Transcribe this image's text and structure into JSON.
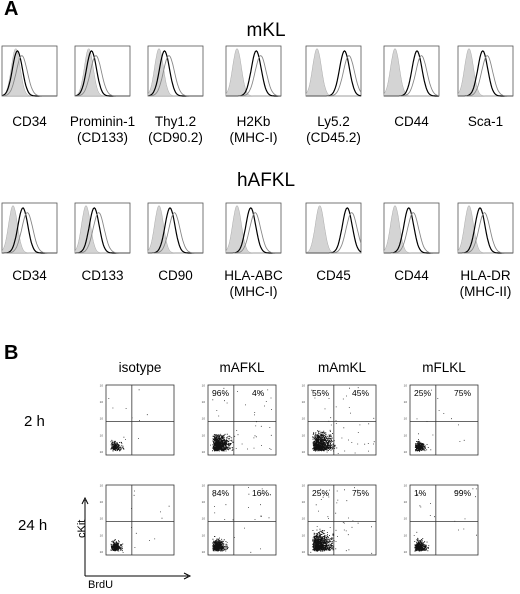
{
  "panel_a": {
    "letter": "A",
    "mkl": {
      "title": "mKL",
      "markers": [
        {
          "line1": "CD34",
          "line2": ""
        },
        {
          "line1": "Prominin-1",
          "line2": "(CD133)"
        },
        {
          "line1": "Thy1.2",
          "line2": "(CD90.2)"
        },
        {
          "line1": "H2Kb",
          "line2": "(MHC-I)"
        },
        {
          "line1": "Ly5.2",
          "line2": "(CD45.2)"
        },
        {
          "line1": "CD44",
          "line2": ""
        },
        {
          "line1": "Sca-1",
          "line2": ""
        }
      ]
    },
    "hafkl": {
      "title": "hAFKL",
      "markers": [
        {
          "line1": "CD34",
          "line2": ""
        },
        {
          "line1": "CD133",
          "line2": ""
        },
        {
          "line1": "CD90",
          "line2": ""
        },
        {
          "line1": "HLA-ABC",
          "line2": "(MHC-I)"
        },
        {
          "line1": "CD45",
          "line2": ""
        },
        {
          "line1": "CD44",
          "line2": ""
        },
        {
          "line1": "HLA-DR",
          "line2": "(MHC-II)"
        }
      ]
    }
  },
  "panel_b": {
    "letter": "B",
    "columns": [
      "isotype",
      "mAFKL",
      "mAmKL",
      "mFLKL"
    ],
    "rows": [
      "2 h",
      "24 h"
    ],
    "y_axis_label": "cKit",
    "x_axis_label": "BrdU",
    "quadrants": [
      [
        {
          "left": "",
          "right": ""
        },
        {
          "left": "96%",
          "right": "4%"
        },
        {
          "left": "55%",
          "right": "45%"
        },
        {
          "left": "25%",
          "right": "75%"
        }
      ],
      [
        {
          "left": "",
          "right": ""
        },
        {
          "left": "84%",
          "right": "16%"
        },
        {
          "left": "25%",
          "right": "75%"
        },
        {
          "left": "1%",
          "right": "99%"
        }
      ]
    ]
  },
  "chart_data": [
    {
      "type": "histogram",
      "title": "mKL",
      "categories": [
        "CD34",
        "Prominin-1 (CD133)",
        "Thy1.2 (CD90.2)",
        "H2Kb (MHC-I)",
        "Ly5.2 (CD45.2)",
        "CD44",
        "Sca-1"
      ],
      "series": [
        {
          "role": "isotype",
          "style": "gray-filled",
          "peak": [
            0.25,
            0.25,
            0.2,
            0.2,
            0.2,
            0.2,
            0.2
          ]
        },
        {
          "role": "stain",
          "style": "black-line",
          "peak": [
            0.28,
            0.3,
            0.3,
            0.55,
            0.7,
            0.6,
            0.45
          ]
        }
      ]
    },
    {
      "type": "histogram",
      "title": "hAFKL",
      "categories": [
        "CD34",
        "CD133",
        "CD90",
        "HLA-ABC (MHC-I)",
        "CD45",
        "CD44",
        "HLA-DR (MHC-II)"
      ],
      "series": [
        {
          "role": "isotype",
          "style": "gray-filled",
          "peak": [
            0.2,
            0.2,
            0.2,
            0.2,
            0.25,
            0.2,
            0.2
          ]
        },
        {
          "role": "stain",
          "style": "black-line",
          "peak": [
            0.38,
            0.35,
            0.4,
            0.45,
            0.75,
            0.45,
            0.4
          ]
        }
      ]
    },
    {
      "type": "scatter",
      "title": "",
      "xlabel": "BrdU",
      "ylabel": "cKit",
      "columns": [
        "isotype",
        "mAFKL",
        "mAmKL",
        "mFLKL"
      ],
      "rows": [
        "2 h",
        "24 h"
      ],
      "quadrant_percent_upper_left": [
        [
          null,
          96,
          55,
          25
        ],
        [
          null,
          84,
          25,
          1
        ]
      ],
      "quadrant_percent_upper_right": [
        [
          null,
          4,
          45,
          75
        ],
        [
          null,
          16,
          75,
          99
        ]
      ]
    }
  ]
}
